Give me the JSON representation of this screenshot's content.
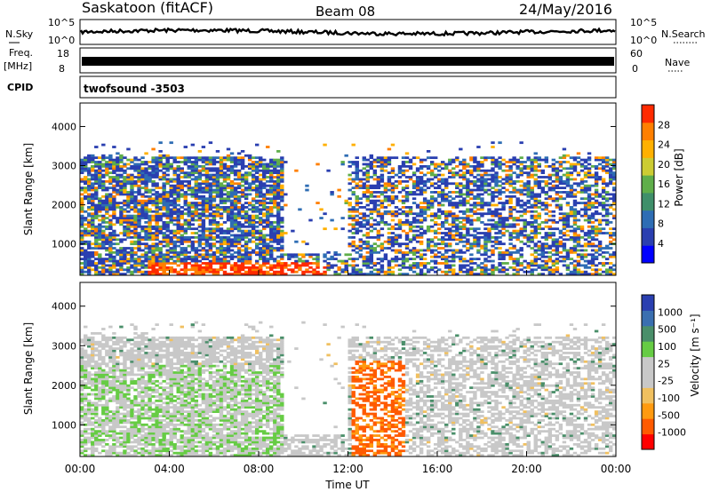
{
  "header": {
    "station": "Saskatoon (fitACF)",
    "beam": "Beam 08",
    "date": "24/May/2016"
  },
  "strips": {
    "nsky_label": "N.Sky",
    "nsearch_label": "N.Search",
    "nsky_ticks": [
      "10^5",
      "10^0"
    ],
    "nsearch_ticks": [
      "10^5",
      "10^0"
    ],
    "freq_label_top": "Freq.",
    "freq_label_unit": "[MHz]",
    "freq_ticks": [
      "18",
      "8"
    ],
    "nave_label": "Nave",
    "nave_ticks": [
      "60",
      "0"
    ],
    "cpid_label": "CPID",
    "cpid_value": "twofsound  -3503"
  },
  "chart_data": [
    {
      "type": "heatmap",
      "title": "",
      "ylabel": "Slant Range [km]",
      "ylim": [
        200,
        4600
      ],
      "yticks": [
        "4000",
        "3000",
        "2000",
        "1000"
      ],
      "colorbar_label": "Power [dB]",
      "colorbar_ticks": [
        "28",
        "24",
        "20",
        "16",
        "12",
        "8",
        "4"
      ],
      "colors": [
        "#0000ff",
        "#2a3fb0",
        "#2e6db4",
        "#3f8f6a",
        "#5fae4a",
        "#cccc33",
        "#ffb000",
        "#ff7f00",
        "#ff2a00"
      ]
    },
    {
      "type": "heatmap",
      "title": "",
      "ylabel": "Slant Range [km]",
      "xlabel": "Time UT",
      "ylim": [
        200,
        4600
      ],
      "yticks": [
        "4000",
        "3000",
        "2000",
        "1000"
      ],
      "xticks": [
        "00:00",
        "04:00",
        "08:00",
        "12:00",
        "16:00",
        "20:00",
        "00:00"
      ],
      "colorbar_label": "Velocity [m s⁻¹]",
      "colorbar_ticks": [
        "1000",
        "500",
        "100",
        "25",
        "-25",
        "-100",
        "-500",
        "-1000"
      ],
      "colors": [
        "#ff0000",
        "#ff5a00",
        "#ff9a10",
        "#f0c060",
        "#c8c8c8",
        "#c8c8c8",
        "#66cc44",
        "#4a8f6a",
        "#3a6fb0",
        "#2a3fb0"
      ]
    }
  ]
}
